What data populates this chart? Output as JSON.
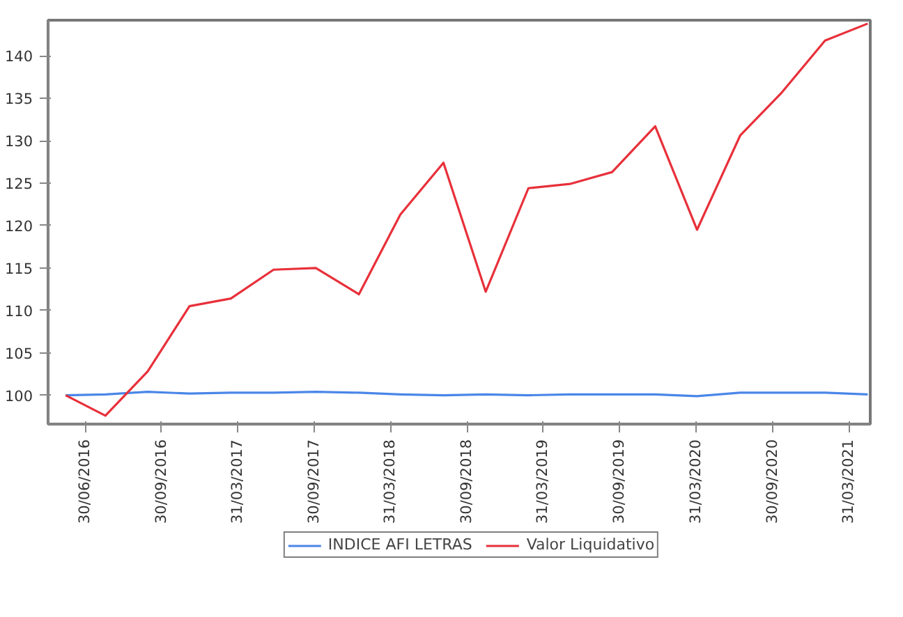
{
  "chart_data": {
    "type": "line",
    "x": [
      "2016-02-14",
      "2016-05-19",
      "2016-08-28",
      "2016-12-06",
      "2017-03-15",
      "2017-06-25",
      "2017-10-04",
      "2018-01-15",
      "2018-04-24",
      "2018-08-05",
      "2018-11-14",
      "2019-02-24",
      "2019-06-03",
      "2019-09-12",
      "2019-12-24",
      "2020-04-02",
      "2020-07-14",
      "2020-10-22",
      "2021-02-02",
      "2021-05-15"
    ],
    "series": [
      {
        "name": "INDICE AFI LETRAS",
        "color": "#4a86e8",
        "values": [
          100,
          100.1,
          100.4,
          100.2,
          100.3,
          100.3,
          100.4,
          100.3,
          100.1,
          100.0,
          100.1,
          100.0,
          100.1,
          100.1,
          100.1,
          99.9,
          100.3,
          100.3,
          100.3,
          100.1
        ]
      },
      {
        "name": "Valor Liquidativo",
        "color": "#e8303a",
        "values": [
          100,
          97.6,
          102.8,
          110.5,
          111.4,
          114.8,
          115.0,
          111.9,
          121.3,
          127.4,
          112.2,
          124.4,
          124.9,
          126.3,
          131.7,
          119.5,
          130.6,
          135.7,
          141.8,
          143.8
        ]
      }
    ],
    "xlim": [
      "2016-01-03",
      "2021-05-21"
    ],
    "xticks": [
      {
        "value": "2016-04-01",
        "label": "30/06/2016"
      },
      {
        "value": "2016-09-30",
        "label": "30/09/2016"
      },
      {
        "value": "2017-03-31",
        "label": "31/03/2017"
      },
      {
        "value": "2017-09-30",
        "label": "30/09/2017"
      },
      {
        "value": "2018-03-31",
        "label": "31/03/2018"
      },
      {
        "value": "2018-09-30",
        "label": "30/09/2018"
      },
      {
        "value": "2019-03-31",
        "label": "31/03/2019"
      },
      {
        "value": "2019-09-30",
        "label": "30/09/2019"
      },
      {
        "value": "2020-03-31",
        "label": "31/03/2020"
      },
      {
        "value": "2020-09-30",
        "label": "30/09/2020"
      },
      {
        "value": "2021-03-31",
        "label": "31/03/2021"
      }
    ],
    "ylim": [
      96.6,
      144.2
    ],
    "yticks": [
      100,
      105,
      110,
      115,
      120,
      125,
      130,
      135,
      140
    ],
    "legend": "bottom",
    "line_style": "solid"
  }
}
